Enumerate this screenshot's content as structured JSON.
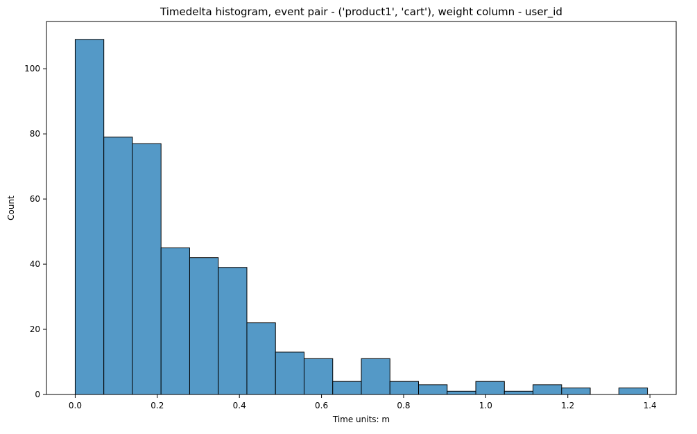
{
  "chart_data": {
    "type": "bar",
    "title": "Timedelta histogram, event pair - ('product1', 'cart'), weight column - user_id",
    "xlabel": "Time units: m",
    "ylabel": "Count",
    "bins": [
      {
        "x0": 0.0,
        "x1": 0.0697,
        "count": 109
      },
      {
        "x0": 0.0697,
        "x1": 0.1394,
        "count": 79
      },
      {
        "x0": 0.1394,
        "x1": 0.2091,
        "count": 77
      },
      {
        "x0": 0.2091,
        "x1": 0.2788,
        "count": 45
      },
      {
        "x0": 0.2788,
        "x1": 0.3485,
        "count": 42
      },
      {
        "x0": 0.3485,
        "x1": 0.4182,
        "count": 39
      },
      {
        "x0": 0.4182,
        "x1": 0.4879,
        "count": 22
      },
      {
        "x0": 0.4879,
        "x1": 0.5576,
        "count": 13
      },
      {
        "x0": 0.5576,
        "x1": 0.6273,
        "count": 11
      },
      {
        "x0": 0.6273,
        "x1": 0.697,
        "count": 4
      },
      {
        "x0": 0.697,
        "x1": 0.7667,
        "count": 11
      },
      {
        "x0": 0.7667,
        "x1": 0.8364,
        "count": 4
      },
      {
        "x0": 0.8364,
        "x1": 0.9061,
        "count": 3
      },
      {
        "x0": 0.9061,
        "x1": 0.9758,
        "count": 1
      },
      {
        "x0": 0.9758,
        "x1": 1.0455,
        "count": 4
      },
      {
        "x0": 1.0455,
        "x1": 1.1152,
        "count": 1
      },
      {
        "x0": 1.1152,
        "x1": 1.1849,
        "count": 3
      },
      {
        "x0": 1.1849,
        "x1": 1.2546,
        "count": 2
      },
      {
        "x0": 1.2546,
        "x1": 1.3243,
        "count": 0
      },
      {
        "x0": 1.3243,
        "x1": 1.394,
        "count": 2
      }
    ],
    "xlim": [
      -0.07,
      1.464
    ],
    "ylim": [
      0,
      114.5
    ],
    "xticks": [
      "0.0",
      "0.2",
      "0.4",
      "0.6",
      "0.8",
      "1.0",
      "1.2",
      "1.4"
    ],
    "yticks": [
      "0",
      "20",
      "40",
      "60",
      "80",
      "100"
    ],
    "grid": false,
    "bar_color": "#5499c7",
    "edge_color": "#000000"
  }
}
